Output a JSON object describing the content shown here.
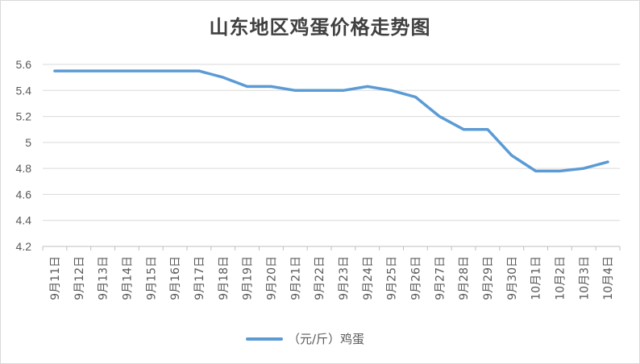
{
  "chart_data": {
    "type": "line",
    "title": "山东地区鸡蛋价格走势图",
    "xlabel": "",
    "ylabel": "",
    "categories": [
      "9月11日",
      "9月12日",
      "9月13日",
      "9月14日",
      "9月15日",
      "9月16日",
      "9月17日",
      "9月18日",
      "9月19日",
      "9月20日",
      "9月21日",
      "9月22日",
      "9月23日",
      "9月24日",
      "9月25日",
      "9月26日",
      "9月27日",
      "9月28日",
      "9月29日",
      "9月30日",
      "10月1日",
      "10月2日",
      "10月3日",
      "10月4日"
    ],
    "series": [
      {
        "name": "（元/斤）鸡蛋",
        "color": "#5b9bd5",
        "values": [
          5.55,
          5.55,
          5.55,
          5.55,
          5.55,
          5.55,
          5.55,
          5.5,
          5.43,
          5.43,
          5.4,
          5.4,
          5.4,
          5.43,
          5.4,
          5.35,
          5.2,
          5.1,
          5.1,
          4.9,
          4.78,
          4.78,
          4.8,
          4.85
        ]
      }
    ],
    "ylim": [
      4.2,
      5.6
    ],
    "yticks": [
      "4.2",
      "4.4",
      "4.6",
      "4.8",
      "5",
      "5.2",
      "5.4",
      "5.6"
    ],
    "grid": true,
    "legend_position": "bottom"
  }
}
